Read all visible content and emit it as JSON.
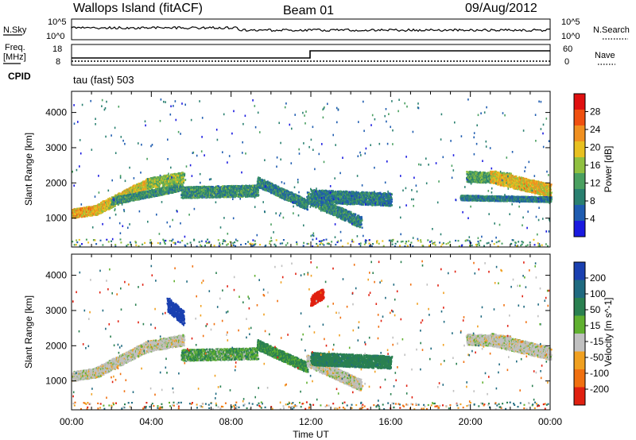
{
  "header": {
    "station": "Wallops Island (fitACF)",
    "beam": "Beam 01",
    "date": "09/Aug/2012"
  },
  "noise_panel": {
    "left_label": "N.Sky",
    "right_label": "N.Search",
    "left_ticks": [
      "10^5",
      "10^0"
    ],
    "right_ticks": [
      "10^5",
      "10^0"
    ]
  },
  "freq_panel": {
    "left_label_1": "Freq.",
    "left_label_2": "[MHz]",
    "left_ticks": [
      "18",
      "8"
    ],
    "right_label": "Nave",
    "right_ticks": [
      "60",
      "0"
    ],
    "cpid_label": "CPID",
    "cpid_value": "tau (fast) 503"
  },
  "colors": {
    "power": [
      "#1a1ae0",
      "#1f5cb0",
      "#2a8070",
      "#4aa060",
      "#90c040",
      "#e8c020",
      "#f09020",
      "#f05010",
      "#e01010"
    ],
    "velocity": [
      "#1a40b0",
      "#1f6a80",
      "#2a8050",
      "#60b030",
      "#c0c0c0",
      "#f0a020",
      "#f07010",
      "#e02010"
    ]
  },
  "chart_data": [
    {
      "type": "heatmap",
      "title": "Power",
      "xlabel": "",
      "ylabel": "Slant Range [km]",
      "x_ticks": [
        "00:00",
        "04:00",
        "08:00",
        "12:00",
        "16:00",
        "20:00",
        "00:00"
      ],
      "x_range_hours": [
        0,
        24
      ],
      "y_ticks": [
        1000,
        2000,
        3000,
        4000
      ],
      "y_range_km": [
        180,
        4600
      ],
      "colorbar_label": "Power [dB]",
      "colorbar_ticks": [
        4,
        8,
        12,
        16,
        20,
        24,
        28
      ],
      "colorbar_range": [
        0,
        30
      ],
      "echo_bands": [
        {
          "t0": 0.0,
          "t1": 1.2,
          "r0": 1150,
          "r1": 1250,
          "w": 130,
          "p": 20
        },
        {
          "t0": 1.2,
          "t1": 3.8,
          "r0": 1250,
          "r1": 2000,
          "w": 150,
          "p": 18
        },
        {
          "t0": 3.8,
          "t1": 5.6,
          "r0": 2000,
          "r1": 2180,
          "w": 150,
          "p": 15
        },
        {
          "t0": 2.0,
          "t1": 5.5,
          "r0": 1500,
          "r1": 1900,
          "w": 100,
          "p": 10
        },
        {
          "t0": 5.5,
          "t1": 9.3,
          "r0": 1750,
          "r1": 1800,
          "w": 160,
          "p": 10
        },
        {
          "t0": 9.3,
          "t1": 11.8,
          "r0": 2050,
          "r1": 1400,
          "w": 140,
          "p": 9
        },
        {
          "t0": 11.8,
          "t1": 14.5,
          "r0": 1600,
          "r1": 900,
          "w": 160,
          "p": 9
        },
        {
          "t0": 12.0,
          "t1": 16.0,
          "r0": 1650,
          "r1": 1550,
          "w": 180,
          "p": 8
        },
        {
          "t0": 19.8,
          "t1": 22.0,
          "r0": 2200,
          "r1": 2150,
          "w": 150,
          "p": 12
        },
        {
          "t0": 21.0,
          "t1": 24.0,
          "r0": 2200,
          "r1": 1800,
          "w": 180,
          "p": 19
        },
        {
          "t0": 19.5,
          "t1": 24.0,
          "r0": 1600,
          "r1": 1550,
          "w": 70,
          "p": 8
        }
      ]
    },
    {
      "type": "heatmap",
      "title": "Velocity",
      "xlabel": "Time UT",
      "ylabel": "Slant Range [km]",
      "x_ticks": [
        "00:00",
        "04:00",
        "08:00",
        "12:00",
        "16:00",
        "20:00",
        "00:00"
      ],
      "x_range_hours": [
        0,
        24
      ],
      "y_ticks": [
        1000,
        2000,
        3000,
        4000
      ],
      "y_range_km": [
        180,
        4600
      ],
      "colorbar_label": "Velocity [m s^-1]",
      "colorbar_ticks": [
        200,
        100,
        50,
        15,
        -15,
        -50,
        -100,
        -200
      ],
      "colorbar_range": [
        -250,
        250
      ],
      "echo_bands": [
        {
          "t0": 0.0,
          "t1": 1.2,
          "r0": 1150,
          "r1": 1250,
          "w": 130,
          "v": 0
        },
        {
          "t0": 1.2,
          "t1": 3.8,
          "r0": 1250,
          "r1": 2000,
          "w": 150,
          "v": 0
        },
        {
          "t0": 3.8,
          "t1": 5.6,
          "r0": 2000,
          "r1": 2180,
          "w": 150,
          "v": 0
        },
        {
          "t0": 5.5,
          "t1": 9.3,
          "r0": 1750,
          "r1": 1800,
          "w": 160,
          "v": 30
        },
        {
          "t0": 9.3,
          "t1": 11.8,
          "r0": 2050,
          "r1": 1400,
          "w": 140,
          "v": 40
        },
        {
          "t0": 11.8,
          "t1": 14.5,
          "r0": 1600,
          "r1": 900,
          "w": 160,
          "v": 0
        },
        {
          "t0": 12.0,
          "t1": 16.0,
          "r0": 1650,
          "r1": 1550,
          "w": 180,
          "v": 60
        },
        {
          "t0": 19.8,
          "t1": 22.0,
          "r0": 2200,
          "r1": 2150,
          "w": 150,
          "v": 0
        },
        {
          "t0": 21.0,
          "t1": 24.0,
          "r0": 2200,
          "r1": 1800,
          "w": 180,
          "v": 0
        },
        {
          "t0": 4.8,
          "t1": 5.6,
          "r0": 3200,
          "r1": 2800,
          "w": 200,
          "v": 200
        },
        {
          "t0": 12.0,
          "t1": 12.6,
          "r0": 3300,
          "r1": 3500,
          "w": 150,
          "v": -200
        }
      ]
    }
  ],
  "xlabel": "Time UT"
}
